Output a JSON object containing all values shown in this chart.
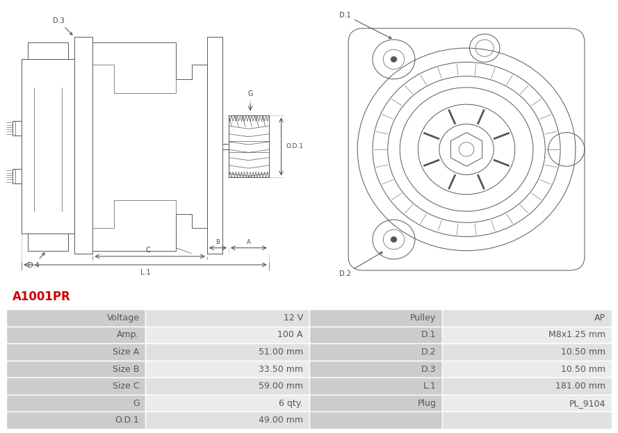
{
  "title": "A1001PR",
  "title_color": "#cc0000",
  "table_left_headers": [
    "Voltage",
    "Amp.",
    "Size A",
    "Size B",
    "Size C",
    "G",
    "O.D.1"
  ],
  "table_left_values": [
    "12 V",
    "100 A",
    "51.00 mm",
    "33.50 mm",
    "59.00 mm",
    "6 qty.",
    "49.00 mm"
  ],
  "table_right_headers": [
    "Pulley",
    "D.1",
    "D.2",
    "D.3",
    "L.1",
    "Plug",
    ""
  ],
  "table_right_values": [
    "AP",
    "M8x1.25 mm",
    "10.50 mm",
    "10.50 mm",
    "181.00 mm",
    "PL_9104",
    ""
  ],
  "bg_color": "#ffffff",
  "header_bg": "#cccccc",
  "row_bg_even": "#e0e0e0",
  "row_bg_odd": "#ebebeb",
  "border_color": "#ffffff",
  "text_color": "#555555",
  "line_color": "#555555",
  "font_size": 9
}
